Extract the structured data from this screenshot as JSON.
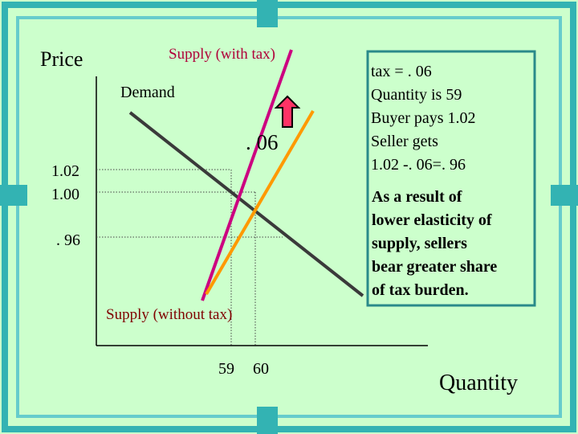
{
  "diagram": {
    "price_label": "Price",
    "quantity_label": "Quantity",
    "supply_with_tax": "Supply (with tax)",
    "supply_without_tax": "Supply (without tax)",
    "demand": "Demand",
    "tax_mark": ". 06",
    "price_labels": [
      "1.02",
      "1.00",
      ". 96"
    ],
    "quantity_labels": [
      "59",
      "60"
    ]
  },
  "box": {
    "lines": [
      "tax = . 06",
      "Quantity is 59",
      " Buyer pays 1.02",
      "Seller gets",
      "1.02 -. 06=. 96"
    ],
    "conclusion": [
      "As a result of",
      "lower elasticity of",
      "supply, sellers",
      "bear greater share",
      "of tax burden."
    ]
  }
}
